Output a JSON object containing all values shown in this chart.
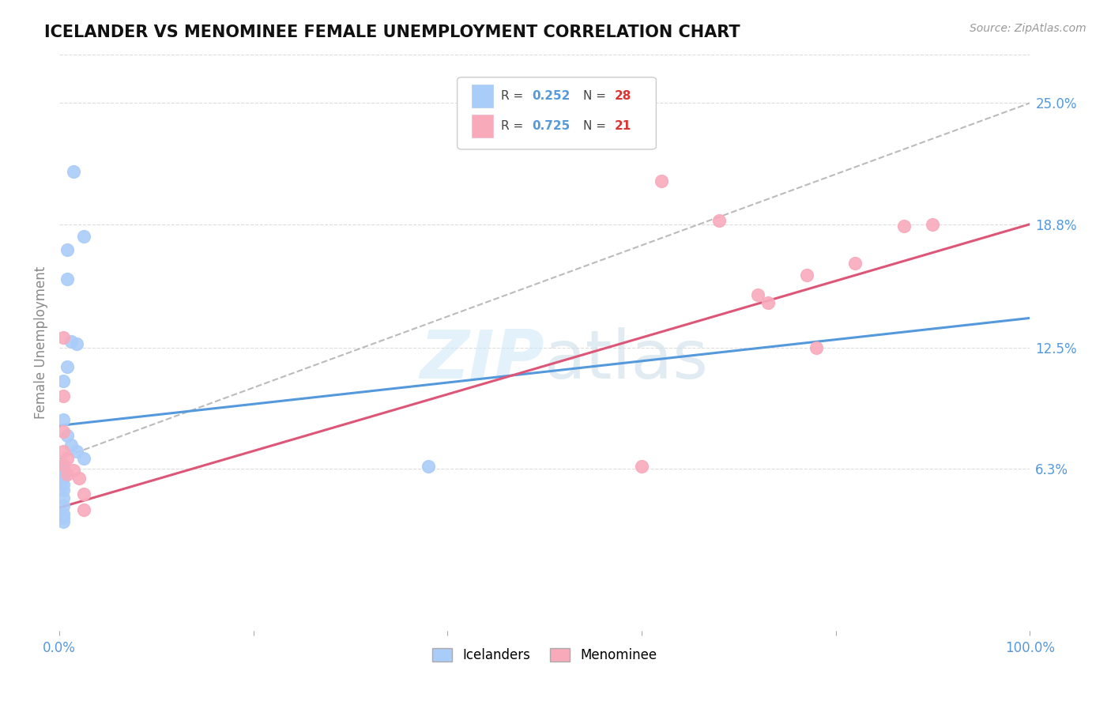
{
  "title": "ICELANDER VS MENOMINEE FEMALE UNEMPLOYMENT CORRELATION CHART",
  "source_text": "Source: ZipAtlas.com",
  "ylabel": "Female Unemployment",
  "watermark": "ZIPatlas",
  "icelander_R": "0.252",
  "icelander_N": "28",
  "menominee_R": "0.725",
  "menominee_N": "21",
  "icelander_scatter_x": [
    0.015,
    0.008,
    0.025,
    0.008,
    0.012,
    0.018,
    0.008,
    0.004,
    0.004,
    0.008,
    0.012,
    0.018,
    0.025,
    0.004,
    0.004,
    0.004,
    0.004,
    0.004,
    0.004,
    0.004,
    0.004,
    0.004,
    0.004,
    0.004,
    0.38,
    0.004,
    0.004,
    0.004
  ],
  "icelander_scatter_y": [
    0.215,
    0.175,
    0.182,
    0.16,
    0.128,
    0.127,
    0.115,
    0.108,
    0.088,
    0.08,
    0.075,
    0.072,
    0.068,
    0.064,
    0.064,
    0.062,
    0.062,
    0.06,
    0.06,
    0.058,
    0.055,
    0.052,
    0.048,
    0.044,
    0.064,
    0.04,
    0.038,
    0.036
  ],
  "menominee_scatter_x": [
    0.004,
    0.004,
    0.004,
    0.004,
    0.004,
    0.008,
    0.008,
    0.015,
    0.02,
    0.025,
    0.025,
    0.6,
    0.62,
    0.68,
    0.72,
    0.73,
    0.77,
    0.78,
    0.82,
    0.87,
    0.9
  ],
  "menominee_scatter_y": [
    0.13,
    0.1,
    0.082,
    0.072,
    0.065,
    0.068,
    0.06,
    0.062,
    0.058,
    0.05,
    0.042,
    0.064,
    0.21,
    0.19,
    0.152,
    0.148,
    0.162,
    0.125,
    0.168,
    0.187,
    0.188
  ],
  "icelander_line_x": [
    0.0,
    1.0
  ],
  "icelander_line_y": [
    0.085,
    0.14
  ],
  "menominee_line_x": [
    0.0,
    1.0
  ],
  "menominee_line_y": [
    0.043,
    0.188
  ],
  "dashed_line_x": [
    0.0,
    1.0
  ],
  "dashed_line_y": [
    0.068,
    0.25
  ],
  "icelander_color": "#aaccf8",
  "menominee_color": "#f8aabb",
  "icelander_line_color": "#5599dd",
  "menominee_line_color": "#dd5577",
  "dashed_line_color": "#bbbbbb",
  "right_ytick_labels": [
    "6.3%",
    "12.5%",
    "18.8%",
    "25.0%"
  ],
  "right_ytick_values": [
    0.063,
    0.125,
    0.188,
    0.25
  ],
  "xlim": [
    0.0,
    1.0
  ],
  "ylim": [
    -0.02,
    0.275
  ],
  "xtick_values": [
    0.0,
    0.2,
    0.4,
    0.6,
    0.8,
    1.0
  ],
  "xtick_labels": [
    "0.0%",
    "",
    "",
    "",
    "",
    "100.0%"
  ],
  "background_color": "#ffffff",
  "grid_color": "#dddddd",
  "title_fontsize": 15,
  "axis_label_color": "#888888",
  "tick_label_color_blue": "#5599dd",
  "tick_label_color_pink": "#dd5577",
  "legend_R_color": "#5599dd",
  "legend_N_color": "#dd3333",
  "legend_box_edge": "#cccccc"
}
